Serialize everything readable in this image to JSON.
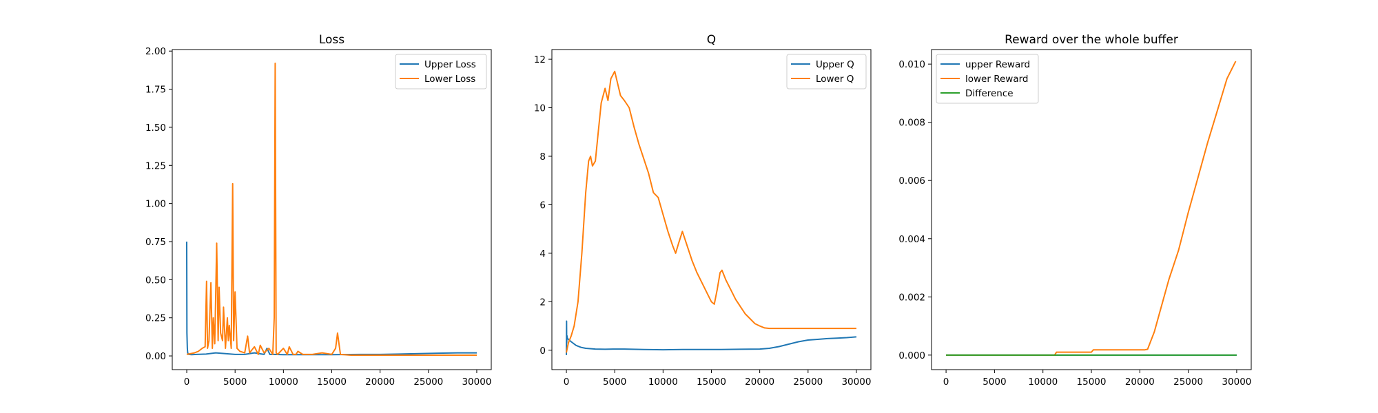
{
  "chart_data": [
    {
      "type": "line",
      "title": "Loss",
      "xlabel": "",
      "ylabel": "",
      "xlim": [
        -1500,
        31500
      ],
      "ylim": [
        -0.09,
        2.01
      ],
      "xticks": [
        0,
        5000,
        10000,
        15000,
        20000,
        25000,
        30000
      ],
      "xtick_labels": [
        "0",
        "5000",
        "10000",
        "15000",
        "20000",
        "25000",
        "30000"
      ],
      "yticks": [
        0.0,
        0.25,
        0.5,
        0.75,
        1.0,
        1.25,
        1.5,
        1.75,
        2.0
      ],
      "ytick_labels": [
        "0.00",
        "0.25",
        "0.50",
        "0.75",
        "1.00",
        "1.25",
        "1.50",
        "1.75",
        "2.00"
      ],
      "legend": "top-right",
      "grid": false,
      "series": [
        {
          "name": "Upper Loss",
          "color": "#1f77b4",
          "x": [
            0,
            20,
            60,
            100,
            200,
            500,
            1000,
            2000,
            3000,
            4000,
            5000,
            6000,
            7000,
            8000,
            8300,
            8600,
            9000,
            10000,
            12000,
            15000,
            18000,
            20000,
            22000,
            24000,
            26000,
            28000,
            30000
          ],
          "y": [
            0.75,
            0.15,
            0.05,
            0.02,
            0.01,
            0.008,
            0.01,
            0.012,
            0.02,
            0.015,
            0.01,
            0.01,
            0.02,
            0.01,
            0.05,
            0.01,
            0.01,
            0.008,
            0.008,
            0.008,
            0.01,
            0.01,
            0.012,
            0.015,
            0.018,
            0.02,
            0.02
          ]
        },
        {
          "name": "Lower Loss",
          "color": "#ff7f0e",
          "x": [
            0,
            800,
            1200,
            1600,
            1900,
            2050,
            2150,
            2300,
            2500,
            2650,
            2750,
            2900,
            3100,
            3250,
            3350,
            3500,
            3700,
            3800,
            4000,
            4200,
            4300,
            4400,
            4600,
            4750,
            4850,
            5000,
            5200,
            5500,
            6000,
            6300,
            6500,
            7000,
            7400,
            7600,
            8000,
            8500,
            8900,
            9050,
            9150,
            9250,
            9400,
            10000,
            10400,
            10600,
            11000,
            11300,
            11500,
            12000,
            13000,
            14000,
            15000,
            15400,
            15600,
            15900,
            17000,
            20000,
            25000,
            30000
          ],
          "y": [
            0.01,
            0.02,
            0.03,
            0.05,
            0.06,
            0.49,
            0.05,
            0.1,
            0.48,
            0.05,
            0.25,
            0.08,
            0.74,
            0.1,
            0.45,
            0.15,
            0.1,
            0.32,
            0.05,
            0.25,
            0.1,
            0.2,
            0.05,
            1.13,
            0.1,
            0.42,
            0.05,
            0.03,
            0.02,
            0.13,
            0.02,
            0.06,
            0.01,
            0.07,
            0.02,
            0.05,
            0.01,
            0.25,
            1.92,
            0.02,
            0.01,
            0.05,
            0.01,
            0.06,
            0.01,
            0.01,
            0.03,
            0.01,
            0.01,
            0.02,
            0.01,
            0.05,
            0.15,
            0.01,
            0.005,
            0.005,
            0.005,
            0.005
          ]
        }
      ]
    },
    {
      "type": "line",
      "title": "Q",
      "xlabel": "",
      "ylabel": "",
      "xlim": [
        -1500,
        31500
      ],
      "ylim": [
        -0.8,
        12.4
      ],
      "xticks": [
        0,
        5000,
        10000,
        15000,
        20000,
        25000,
        30000
      ],
      "xtick_labels": [
        "0",
        "5000",
        "10000",
        "15000",
        "20000",
        "25000",
        "30000"
      ],
      "yticks": [
        0,
        2,
        4,
        6,
        8,
        10,
        12
      ],
      "ytick_labels": [
        "0",
        "2",
        "4",
        "6",
        "8",
        "10",
        "12"
      ],
      "legend": "top-right",
      "grid": false,
      "series": [
        {
          "name": "Upper Q",
          "color": "#1f77b4",
          "x": [
            0,
            15,
            30,
            60,
            100,
            200,
            500,
            1000,
            1500,
            2000,
            3000,
            4000,
            5000,
            6000,
            8000,
            10000,
            12000,
            14000,
            16000,
            18000,
            20000,
            21000,
            22000,
            23000,
            24000,
            25000,
            26000,
            27000,
            28000,
            29000,
            30000
          ],
          "y": [
            -0.2,
            1.2,
            0.3,
            0.6,
            0.5,
            0.45,
            0.35,
            0.2,
            0.12,
            0.08,
            0.05,
            0.04,
            0.05,
            0.05,
            0.03,
            0.02,
            0.03,
            0.03,
            0.03,
            0.04,
            0.05,
            0.08,
            0.15,
            0.25,
            0.35,
            0.42,
            0.45,
            0.48,
            0.5,
            0.52,
            0.55
          ]
        },
        {
          "name": "Lower Q",
          "color": "#ff7f0e",
          "x": [
            0,
            200,
            500,
            800,
            1200,
            1600,
            2000,
            2300,
            2500,
            2700,
            3000,
            3300,
            3600,
            4000,
            4300,
            4600,
            5000,
            5300,
            5600,
            6000,
            6500,
            7000,
            7500,
            8000,
            8500,
            9000,
            9500,
            10000,
            10500,
            11000,
            11300,
            11600,
            12000,
            12500,
            13000,
            13500,
            14000,
            14500,
            15000,
            15300,
            15600,
            15900,
            16100,
            16500,
            17000,
            17500,
            18000,
            18500,
            19000,
            19500,
            20000,
            20500,
            21000,
            22000,
            24000,
            26000,
            28000,
            30000
          ],
          "y": [
            -0.1,
            0.3,
            0.6,
            1.0,
            2.0,
            4.0,
            6.5,
            7.8,
            8.0,
            7.6,
            7.8,
            9.0,
            10.2,
            10.8,
            10.3,
            11.2,
            11.5,
            11.0,
            10.5,
            10.3,
            10.0,
            9.2,
            8.5,
            7.9,
            7.3,
            6.5,
            6.3,
            5.6,
            4.9,
            4.3,
            4.0,
            4.4,
            4.9,
            4.3,
            3.7,
            3.2,
            2.8,
            2.4,
            2.0,
            1.9,
            2.5,
            3.2,
            3.3,
            2.9,
            2.5,
            2.1,
            1.8,
            1.5,
            1.3,
            1.1,
            1.0,
            0.92,
            0.9,
            0.9,
            0.9,
            0.9,
            0.9,
            0.9
          ]
        }
      ]
    },
    {
      "type": "line",
      "title": "Reward over the whole buffer",
      "xlabel": "",
      "ylabel": "",
      "xlim": [
        -1500,
        31500
      ],
      "ylim": [
        -0.0005,
        0.0105
      ],
      "xticks": [
        0,
        5000,
        10000,
        15000,
        20000,
        25000,
        30000
      ],
      "xtick_labels": [
        "0",
        "5000",
        "10000",
        "15000",
        "20000",
        "25000",
        "30000"
      ],
      "yticks": [
        0.0,
        0.002,
        0.004,
        0.006,
        0.008,
        0.01
      ],
      "ytick_labels": [
        "0.000",
        "0.002",
        "0.004",
        "0.006",
        "0.008",
        "0.010"
      ],
      "legend": "top-left",
      "grid": false,
      "series": [
        {
          "name": "upper Reward",
          "color": "#1f77b4",
          "x": [
            0,
            30000
          ],
          "y": [
            0.0,
            0.0
          ]
        },
        {
          "name": "lower Reward",
          "color": "#ff7f0e",
          "x": [
            0,
            11200,
            11400,
            15000,
            15200,
            20500,
            20800,
            21500,
            22000,
            23000,
            24000,
            25000,
            26000,
            27000,
            28000,
            29000,
            29900
          ],
          "y": [
            0.0,
            0.0,
            0.0001,
            0.0001,
            0.00018,
            0.00018,
            0.0002,
            0.0008,
            0.0014,
            0.0026,
            0.0036,
            0.0049,
            0.0061,
            0.0073,
            0.0084,
            0.0095,
            0.0101
          ]
        },
        {
          "name": "Difference",
          "color": "#2ca02c",
          "x": [
            0,
            30000
          ],
          "y": [
            0.0,
            0.0
          ]
        }
      ]
    }
  ]
}
